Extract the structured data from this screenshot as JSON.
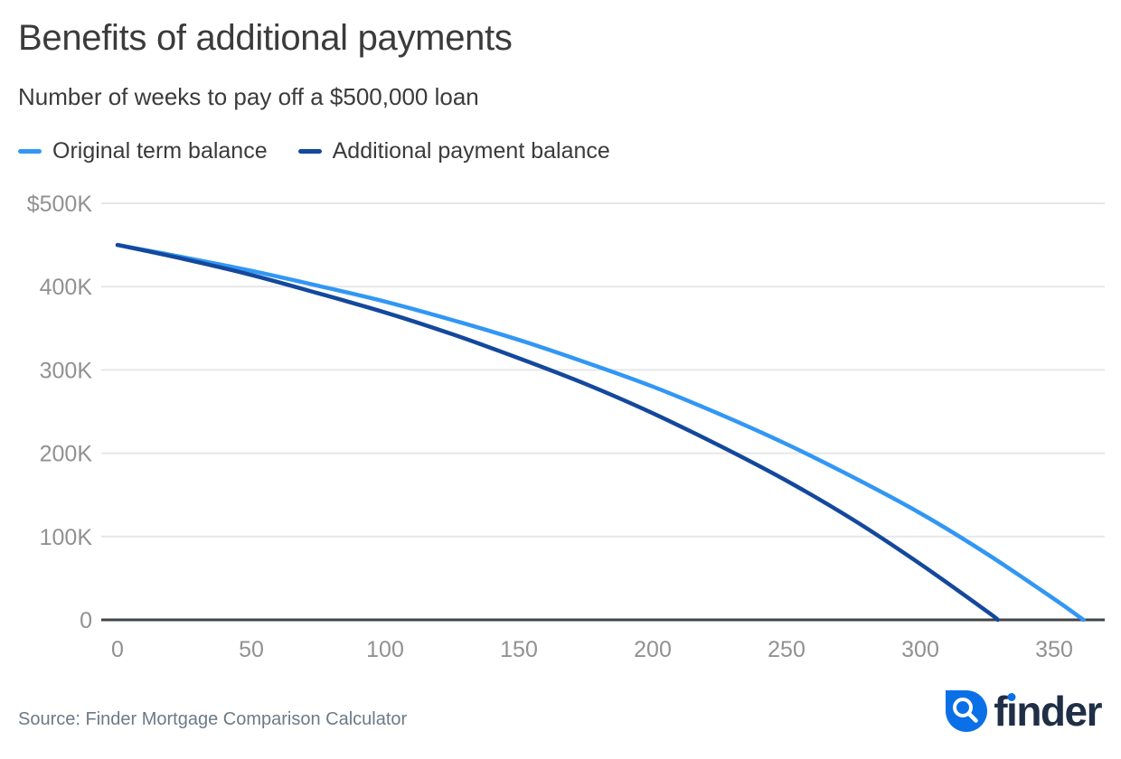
{
  "header": {
    "title": "Benefits of additional payments",
    "subtitle": "Number of weeks to pay off a $500,000 loan"
  },
  "chart_data": {
    "type": "line",
    "title": "Benefits of additional payments",
    "subtitle": "Number of weeks to pay off a $500,000 loan",
    "xlabel": "",
    "ylabel": "",
    "x_unit": "weeks",
    "y_unit": "USD thousands",
    "xlim": [
      -6,
      369
    ],
    "ylim": [
      0,
      500
    ],
    "grid": "horizontal",
    "legend_position": "top-left",
    "x_ticks": [
      0,
      50,
      100,
      150,
      200,
      250,
      300,
      350
    ],
    "y_ticks": [
      {
        "label": "$500K",
        "value": 500
      },
      {
        "label": "400K",
        "value": 400
      },
      {
        "label": "300K",
        "value": 300
      },
      {
        "label": "200K",
        "value": 200
      },
      {
        "label": "100K",
        "value": 100
      },
      {
        "label": "0",
        "value": 0
      }
    ],
    "series": [
      {
        "name": "Original term balance",
        "color": "#3297F4",
        "x": [
          0,
          25,
          50,
          75,
          100,
          125,
          150,
          175,
          200,
          225,
          250,
          275,
          300,
          325,
          350,
          361
        ],
        "y": [
          450,
          435,
          419,
          401,
          382,
          360,
          336,
          309,
          280,
          247,
          211,
          171,
          128,
          79,
          25,
          0
        ]
      },
      {
        "name": "Additional payment balance",
        "color": "#14489C",
        "x": [
          0,
          25,
          50,
          75,
          100,
          125,
          150,
          175,
          200,
          225,
          250,
          275,
          300,
          325,
          329
        ],
        "y": [
          450,
          433,
          414,
          392,
          369,
          343,
          314,
          283,
          248,
          209,
          167,
          120,
          67,
          10,
          0
        ]
      }
    ]
  },
  "footer": {
    "source": "Source: Finder Mortgage Comparison Calculator",
    "logo_text": "finder",
    "brand_blue": "#0B70E8",
    "brand_navy": "#202F46"
  }
}
